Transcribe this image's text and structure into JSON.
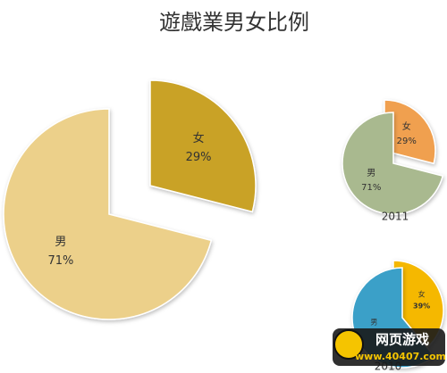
{
  "chart_data": [
    {
      "type": "pie",
      "title": "遊戲業男女比例",
      "categories": [
        "女",
        "男"
      ],
      "values": [
        29,
        71
      ],
      "value_labels": [
        "29%",
        "71%"
      ],
      "colors": [
        "#c9a227",
        "#ecd08a"
      ]
    },
    {
      "type": "pie",
      "title": "2011",
      "categories": [
        "女",
        "男"
      ],
      "values": [
        29,
        71
      ],
      "value_labels": [
        "29%",
        "71%"
      ],
      "colors": [
        "#f0a050",
        "#a9b98f"
      ]
    },
    {
      "type": "pie",
      "title": "2010",
      "categories": [
        "女",
        "男"
      ],
      "values": [
        39,
        61
      ],
      "value_labels": [
        "39%",
        null
      ],
      "colors": [
        "#f5b800",
        "#3aa0c8"
      ]
    }
  ],
  "watermark": {
    "brand": "网页游戏",
    "url": "www.40407.com"
  }
}
